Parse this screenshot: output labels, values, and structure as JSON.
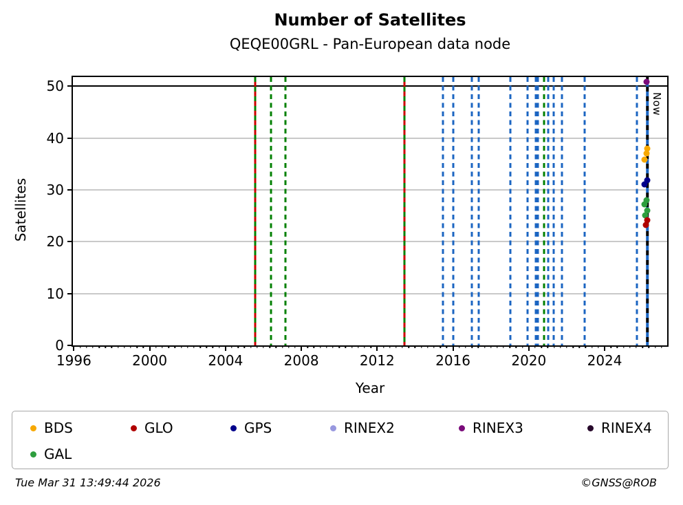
{
  "header": {
    "title": "Number of Satellites",
    "subtitle": "QEQE00GRL - Pan-European data node"
  },
  "footer": {
    "timestamp": "Tue Mar 31 13:49:44 2026",
    "credit": "©GNSS@ROB"
  },
  "legend": {
    "items": [
      {
        "label": "BDS",
        "color": "#F7A800"
      },
      {
        "label": "GLO",
        "color": "#B00000"
      },
      {
        "label": "GPS",
        "color": "#00008B"
      },
      {
        "label": "RINEX2",
        "color": "#9898DF"
      },
      {
        "label": "RINEX3",
        "color": "#7A0B7A"
      },
      {
        "label": "RINEX4",
        "color": "#27092B"
      },
      {
        "label": "GAL",
        "color": "#2E9E3E"
      }
    ]
  },
  "chart_data": {
    "type": "scatter",
    "title": "Number of Satellites",
    "subtitle": "QEQE00GRL - Pan-European data node",
    "xlabel": "Year",
    "ylabel": "Satellites",
    "xlim": [
      1995.95,
      2027.3
    ],
    "ylim": [
      0,
      51.75
    ],
    "x_major_ticks": [
      1996,
      2000,
      2004,
      2008,
      2012,
      2016,
      2020,
      2024
    ],
    "x_minor_step_years": 0.33333,
    "y_ticks": [
      0,
      10,
      20,
      30,
      40,
      50
    ],
    "grid_y_values": [
      10,
      20,
      30,
      40
    ],
    "hline_black_y": 50,
    "grid_color": "#c9c9c9",
    "now_marker": {
      "year": 2026.25,
      "label": "Now",
      "line_colors": [
        "#000000",
        "#1B65C2"
      ],
      "style": "dashed"
    },
    "event_lines": [
      {
        "year": 2005.55,
        "colors": [
          "#008000",
          "#CC0000"
        ],
        "style": "solid-alternating"
      },
      {
        "year": 2006.4,
        "colors": [
          "#008000"
        ],
        "style": "dashed"
      },
      {
        "year": 2007.15,
        "colors": [
          "#008000"
        ],
        "style": "dashed"
      },
      {
        "year": 2013.45,
        "colors": [
          "#008000",
          "#CC0000"
        ],
        "style": "solid-alternating"
      },
      {
        "year": 2015.47,
        "colors": [
          "#1B65C2"
        ],
        "style": "dashed"
      },
      {
        "year": 2016.02,
        "colors": [
          "#1B65C2"
        ],
        "style": "dashed"
      },
      {
        "year": 2016.98,
        "colors": [
          "#1B65C2"
        ],
        "style": "dashed"
      },
      {
        "year": 2017.35,
        "colors": [
          "#1B65C2"
        ],
        "style": "dashed"
      },
      {
        "year": 2019.02,
        "colors": [
          "#1B65C2"
        ],
        "style": "dashed"
      },
      {
        "year": 2019.95,
        "colors": [
          "#1B65C2"
        ],
        "style": "dashed"
      },
      {
        "year": 2020.36,
        "colors": [
          "#1B65C2"
        ],
        "style": "dashed"
      },
      {
        "year": 2020.47,
        "colors": [
          "#1B65C2"
        ],
        "style": "dashed"
      },
      {
        "year": 2020.8,
        "colors": [
          "#008000"
        ],
        "style": "dashed"
      },
      {
        "year": 2021.04,
        "colors": [
          "#1B65C2"
        ],
        "style": "dashed"
      },
      {
        "year": 2021.33,
        "colors": [
          "#1B65C2"
        ],
        "style": "dashed"
      },
      {
        "year": 2021.76,
        "colors": [
          "#1B65C2"
        ],
        "style": "dashed"
      },
      {
        "year": 2022.93,
        "colors": [
          "#1B65C2"
        ],
        "style": "dashed"
      },
      {
        "year": 2025.69,
        "colors": [
          "#1B65C2"
        ],
        "style": "dashed"
      }
    ],
    "series": [
      {
        "name": "RINEX3",
        "color": "#7A0B7A",
        "marker": "circle",
        "points": [
          [
            2026.2,
            50.8
          ]
        ]
      },
      {
        "name": "BDS",
        "color": "#F7A800",
        "marker": "circle",
        "points": [
          [
            2026.25,
            38.0
          ],
          [
            2026.2,
            37.0
          ],
          [
            2026.1,
            35.8
          ]
        ]
      },
      {
        "name": "GPS",
        "color": "#00008B",
        "marker": "circle",
        "points": [
          [
            2026.25,
            31.9
          ],
          [
            2026.1,
            31.1
          ]
        ]
      },
      {
        "name": "GAL",
        "color": "#2E9E3E",
        "marker": "circle",
        "points": [
          [
            2026.2,
            28.0
          ],
          [
            2026.1,
            27.2
          ],
          [
            2026.23,
            26.0
          ],
          [
            2026.14,
            25.1
          ]
        ]
      },
      {
        "name": "GLO",
        "color": "#B00000",
        "marker": "circle",
        "points": [
          [
            2026.25,
            24.2
          ],
          [
            2026.16,
            23.2
          ]
        ]
      }
    ]
  }
}
